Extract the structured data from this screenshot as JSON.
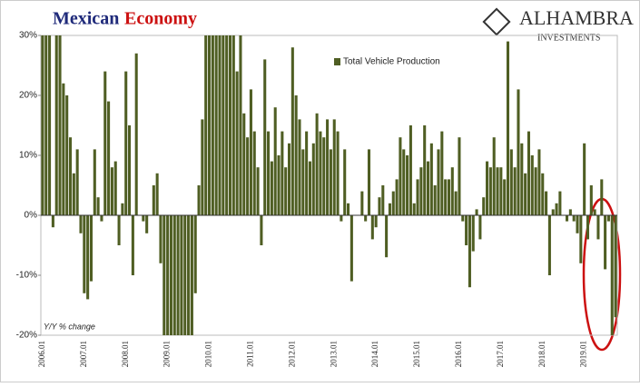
{
  "chart_data": {
    "type": "bar",
    "title_parts": [
      "Mexican",
      "Economy"
    ],
    "logo": {
      "name": "ALHAMBRA",
      "tagline": "INVESTMENTS"
    },
    "annotation": "Y/Y % change",
    "ylim": [
      -20,
      30
    ],
    "yticks": [
      {
        "value": -20,
        "label": "-20%"
      },
      {
        "value": -10,
        "label": "-10%"
      },
      {
        "value": 0,
        "label": "0%"
      },
      {
        "value": 10,
        "label": "10%"
      },
      {
        "value": 20,
        "label": "20%"
      },
      {
        "value": 30,
        "label": "30%"
      }
    ],
    "grid": false,
    "legend": "top",
    "categories": [
      "2006.01",
      null,
      null,
      null,
      null,
      null,
      null,
      null,
      null,
      null,
      null,
      null,
      "2007.01",
      null,
      null,
      null,
      null,
      null,
      null,
      null,
      null,
      null,
      null,
      null,
      "2008.01",
      null,
      null,
      null,
      null,
      null,
      null,
      null,
      null,
      null,
      null,
      null,
      "2009.01",
      null,
      null,
      null,
      null,
      null,
      null,
      null,
      null,
      null,
      null,
      null,
      "2010.01",
      null,
      null,
      null,
      null,
      null,
      null,
      null,
      null,
      null,
      null,
      null,
      "2011.01",
      null,
      null,
      null,
      null,
      null,
      null,
      null,
      null,
      null,
      null,
      null,
      "2012.01",
      null,
      null,
      null,
      null,
      null,
      null,
      null,
      null,
      null,
      null,
      null,
      "2013.01",
      null,
      null,
      null,
      null,
      null,
      null,
      null,
      null,
      null,
      null,
      null,
      "2014.01",
      null,
      null,
      null,
      null,
      null,
      null,
      null,
      null,
      null,
      null,
      null,
      "2015.01",
      null,
      null,
      null,
      null,
      null,
      null,
      null,
      null,
      null,
      null,
      null,
      "2016.01",
      null,
      null,
      null,
      null,
      null,
      null,
      null,
      null,
      null,
      null,
      null,
      "2017.01",
      null,
      null,
      null,
      null,
      null,
      null,
      null,
      null,
      null,
      null,
      null,
      "2018.01",
      null,
      null,
      null,
      null,
      null,
      null,
      null,
      null,
      null,
      null,
      null,
      "2019.01",
      null,
      null,
      null,
      null,
      null,
      null,
      null,
      null,
      null
    ],
    "series": [
      {
        "name": "Total Vehicle Production",
        "color": "#4f5e23",
        "values": [
          30,
          30,
          30,
          -2,
          30,
          30,
          22,
          20,
          13,
          7,
          11,
          -3,
          -13,
          -14,
          -11,
          11,
          3,
          -1,
          24,
          19,
          8,
          9,
          -5,
          2,
          24,
          15,
          -10,
          27,
          0,
          -1,
          -3,
          0,
          5,
          7,
          -8,
          -20,
          -20,
          -20,
          -20,
          -20,
          -20,
          -20,
          -20,
          -20,
          -13,
          5,
          16,
          30,
          30,
          30,
          30,
          30,
          30,
          30,
          30,
          30,
          24,
          30,
          17,
          13,
          21,
          14,
          8,
          -5,
          26,
          14,
          9,
          18,
          10,
          14,
          8,
          12,
          28,
          20,
          16,
          11,
          14,
          9,
          12,
          17,
          14,
          13,
          16,
          11,
          16,
          14,
          -1,
          11,
          2,
          -11,
          0,
          0,
          4,
          -1,
          11,
          -4,
          -2,
          3,
          5,
          -7,
          2,
          4,
          6,
          13,
          11,
          10,
          15,
          2,
          6,
          8,
          15,
          9,
          12,
          5,
          11,
          14,
          6,
          6,
          8,
          4,
          13,
          -1,
          -5,
          -12,
          -6,
          1,
          -4,
          3,
          9,
          8,
          13,
          8,
          8,
          6,
          29,
          11,
          8,
          21,
          12,
          7,
          14,
          10,
          8,
          11,
          7,
          4,
          -10,
          1,
          2,
          4,
          0,
          -1,
          1,
          -1,
          -3,
          -8,
          12,
          -4,
          5,
          1,
          -4,
          6,
          -9,
          -1,
          -20,
          -17
        ]
      }
    ]
  }
}
